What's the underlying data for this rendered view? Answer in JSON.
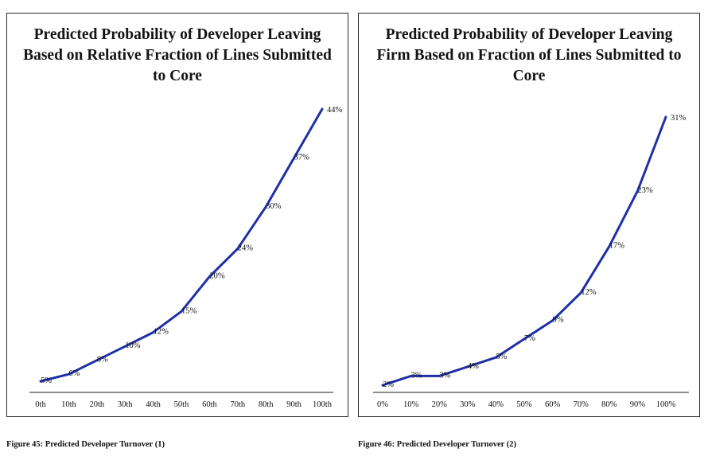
{
  "chart_data": [
    {
      "type": "line",
      "title": "Predicted Probability of Developer Leaving Based on Relative Fraction of Lines Submitted to Core",
      "xlabel": "",
      "ylabel": "",
      "categories": [
        "0th",
        "10th",
        "20th",
        "30th",
        "40th",
        "50th",
        "60th",
        "70th",
        "80th",
        "90th",
        "100th"
      ],
      "series": [
        {
          "values": [
            5,
            6,
            8,
            10,
            12,
            15,
            20,
            24,
            30,
            37,
            44
          ],
          "labels": [
            "5%",
            "6%",
            "8%",
            "10%",
            "12%",
            "15%",
            "20%",
            "24%",
            "30%",
            "37%",
            "44%"
          ]
        }
      ],
      "ylim": [
        0,
        50
      ],
      "y_axis_visible": false,
      "grid": false,
      "line_color": "#1f2fa8"
    },
    {
      "type": "line",
      "title": "Predicted Probability of Developer Leaving Firm Based on Fraction of Lines Submitted to Core",
      "xlabel": "",
      "ylabel": "",
      "categories": [
        "0%",
        "10%",
        "20%",
        "30%",
        "40%",
        "50%",
        "60%",
        "70%",
        "80%",
        "90%",
        "100%"
      ],
      "series": [
        {
          "values": [
            2,
            3,
            3,
            4,
            5,
            7,
            9,
            12,
            17,
            23,
            31
          ],
          "labels": [
            "2%",
            "3%",
            "3%",
            "4%",
            "5%",
            "7%",
            "9%",
            "12%",
            "17%",
            "23%",
            "31%"
          ]
        }
      ],
      "ylim": [
        0,
        35
      ],
      "y_axis_visible": false,
      "grid": false,
      "line_color": "#1f2fa8"
    }
  ],
  "captions": {
    "left": "Figure 45: Predicted Developer Turnover (1)",
    "right": "Figure 46: Predicted Developer Turnover (2)"
  }
}
